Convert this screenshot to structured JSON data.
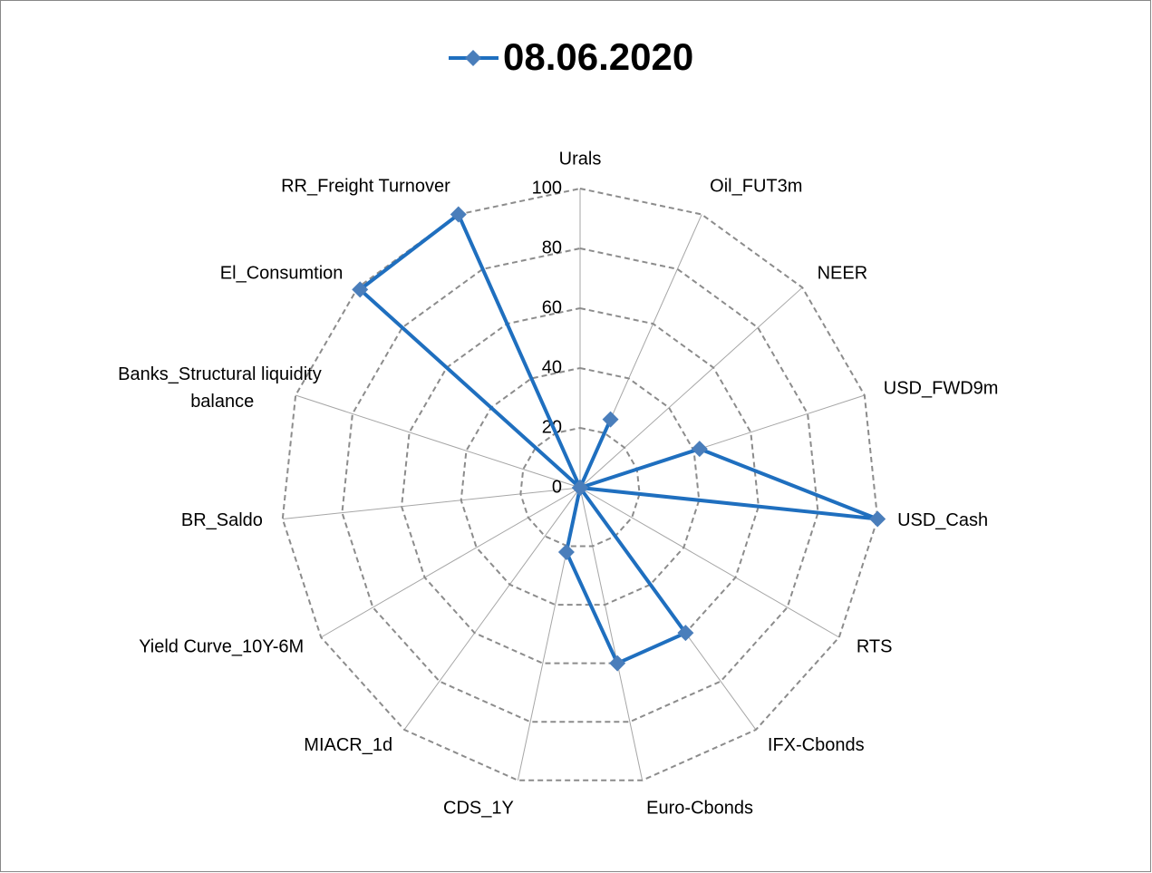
{
  "chart_data": {
    "type": "radar",
    "categories": [
      "Urals",
      "Oil_FUT3m",
      "NEER",
      "USD_FWD9m",
      "USD_Cash",
      "RTS",
      "IFX-Cbonds",
      "Euro-Cbonds",
      "CDS_1Y",
      "MIACR_1d",
      "Yield Curve_10Y-6M",
      "BR_Saldo",
      "Banks_Structural liquidity balance",
      "El_Consumtion",
      "RR_Freight Turnover"
    ],
    "series": [
      {
        "name": "08.06.2020",
        "color": "#1f6fbf",
        "values": [
          0,
          25,
          0,
          42,
          100,
          0,
          60,
          60,
          22,
          0,
          0,
          0,
          0,
          99,
          100
        ]
      }
    ],
    "ylim": [
      0,
      100
    ],
    "yticks": [
      0,
      20,
      40,
      60,
      80,
      100
    ],
    "grid": true,
    "legend": "top"
  }
}
